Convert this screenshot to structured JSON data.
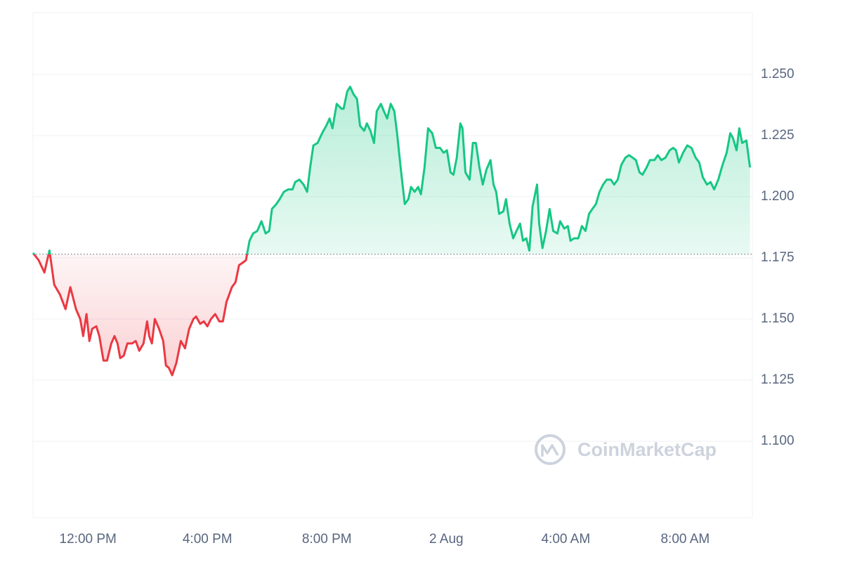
{
  "chart_data": {
    "type": "line",
    "watermark": "CoinMarketCap",
    "x": [
      10.16,
      10.35,
      10.54,
      10.71,
      10.87,
      11.06,
      11.25,
      11.41,
      11.6,
      11.74,
      11.84,
      11.95,
      12.05,
      12.14,
      12.28,
      12.38,
      12.52,
      12.64,
      12.78,
      12.89,
      12.99,
      13.08,
      13.2,
      13.32,
      13.48,
      13.6,
      13.72,
      13.86,
      13.98,
      14.05,
      14.14,
      14.24,
      14.38,
      14.52,
      14.61,
      14.71,
      14.82,
      14.96,
      15.11,
      15.25,
      15.39,
      15.53,
      15.62,
      15.76,
      15.88,
      16.0,
      16.12,
      16.26,
      16.4,
      16.52,
      16.64,
      16.73,
      16.82,
      16.94,
      17.06,
      17.18,
      17.29,
      17.41,
      17.53,
      17.67,
      17.81,
      17.95,
      18.07,
      18.16,
      18.31,
      18.42,
      18.56,
      18.71,
      18.85,
      18.94,
      19.08,
      19.22,
      19.34,
      19.44,
      19.55,
      19.69,
      19.84,
      19.98,
      20.09,
      20.19,
      20.33,
      20.49,
      20.56,
      20.68,
      20.78,
      20.89,
      21.01,
      21.11,
      21.25,
      21.34,
      21.46,
      21.58,
      21.67,
      21.81,
      21.91,
      22.02,
      22.14,
      22.26,
      22.35,
      22.47,
      22.61,
      22.73,
      22.82,
      22.94,
      23.06,
      23.15,
      23.27,
      23.39,
      23.53,
      23.65,
      23.79,
      23.91,
      24.02,
      24.14,
      24.24,
      24.35,
      24.47,
      24.54,
      24.64,
      24.78,
      24.89,
      24.99,
      25.11,
      25.22,
      25.34,
      25.48,
      25.58,
      25.67,
      25.77,
      25.91,
      26.0,
      26.12,
      26.24,
      26.35,
      26.47,
      26.57,
      26.68,
      26.78,
      26.89,
      27.04,
      27.11,
      27.22,
      27.34,
      27.46,
      27.58,
      27.72,
      27.81,
      27.95,
      28.07,
      28.16,
      28.28,
      28.42,
      28.54,
      28.66,
      28.78,
      28.89,
      29.01,
      29.13,
      29.25,
      29.37,
      29.51,
      29.62,
      29.74,
      29.86,
      30.0,
      30.12,
      30.24,
      30.35,
      30.47,
      30.57,
      30.71,
      30.82,
      30.97,
      31.08,
      31.2,
      31.34,
      31.48,
      31.6,
      31.69,
      31.79,
      31.93,
      32.07,
      32.21,
      32.35,
      32.47,
      32.59,
      32.73,
      32.85,
      32.97,
      33.11,
      33.25,
      33.39,
      33.51,
      33.6,
      33.72,
      33.81,
      33.91,
      34.05,
      34.17
    ],
    "values": [
      1.177,
      1.174,
      1.169,
      1.178,
      1.164,
      1.16,
      1.154,
      1.163,
      1.154,
      1.15,
      1.143,
      1.152,
      1.141,
      1.146,
      1.147,
      1.143,
      1.133,
      1.133,
      1.14,
      1.143,
      1.14,
      1.134,
      1.135,
      1.14,
      1.14,
      1.141,
      1.137,
      1.14,
      1.149,
      1.143,
      1.14,
      1.15,
      1.146,
      1.141,
      1.131,
      1.13,
      1.127,
      1.132,
      1.141,
      1.138,
      1.146,
      1.15,
      1.151,
      1.148,
      1.149,
      1.147,
      1.15,
      1.152,
      1.149,
      1.149,
      1.157,
      1.16,
      1.163,
      1.165,
      1.172,
      1.173,
      1.174,
      1.182,
      1.185,
      1.186,
      1.19,
      1.185,
      1.186,
      1.195,
      1.197,
      1.199,
      1.202,
      1.203,
      1.203,
      1.206,
      1.207,
      1.205,
      1.202,
      1.212,
      1.221,
      1.222,
      1.226,
      1.229,
      1.232,
      1.228,
      1.238,
      1.236,
      1.236,
      1.243,
      1.245,
      1.242,
      1.24,
      1.229,
      1.227,
      1.23,
      1.227,
      1.222,
      1.235,
      1.238,
      1.235,
      1.232,
      1.238,
      1.235,
      1.226,
      1.212,
      1.197,
      1.199,
      1.204,
      1.202,
      1.204,
      1.201,
      1.212,
      1.228,
      1.226,
      1.22,
      1.22,
      1.218,
      1.219,
      1.21,
      1.209,
      1.216,
      1.23,
      1.228,
      1.21,
      1.207,
      1.222,
      1.222,
      1.212,
      1.205,
      1.211,
      1.215,
      1.205,
      1.202,
      1.193,
      1.194,
      1.199,
      1.189,
      1.183,
      1.186,
      1.189,
      1.182,
      1.183,
      1.178,
      1.196,
      1.205,
      1.189,
      1.179,
      1.186,
      1.195,
      1.186,
      1.185,
      1.19,
      1.187,
      1.188,
      1.182,
      1.183,
      1.183,
      1.188,
      1.186,
      1.193,
      1.195,
      1.197,
      1.202,
      1.205,
      1.207,
      1.207,
      1.205,
      1.207,
      1.213,
      1.216,
      1.217,
      1.216,
      1.215,
      1.21,
      1.209,
      1.212,
      1.215,
      1.215,
      1.217,
      1.215,
      1.216,
      1.219,
      1.22,
      1.219,
      1.214,
      1.218,
      1.221,
      1.22,
      1.216,
      1.214,
      1.208,
      1.205,
      1.206,
      1.203,
      1.207,
      1.213,
      1.218,
      1.226,
      1.224,
      1.219,
      1.228,
      1.222,
      1.223,
      1.212
    ],
    "baseline": 1.1765,
    "up_color": "#16c784",
    "down_color": "#ea3943",
    "xlim": [
      10.16,
      34.25
    ],
    "xticks": [
      {
        "value": 12,
        "label": "12:00 PM"
      },
      {
        "value": 16,
        "label": "4:00 PM"
      },
      {
        "value": 20,
        "label": "8:00 PM"
      },
      {
        "value": 24,
        "label": "2 Aug"
      },
      {
        "value": 28,
        "label": "4:00 AM"
      },
      {
        "value": 32,
        "label": "8:00 AM"
      }
    ],
    "ylim": [
      1.0687,
      1.2753
    ],
    "yticks": [
      {
        "value": 1.1,
        "label": "1.100"
      },
      {
        "value": 1.125,
        "label": "1.125"
      },
      {
        "value": 1.15,
        "label": "1.150"
      },
      {
        "value": 1.175,
        "label": "1.175"
      },
      {
        "value": 1.2,
        "label": "1.200"
      },
      {
        "value": 1.225,
        "label": "1.225"
      },
      {
        "value": 1.25,
        "label": "1.250"
      }
    ],
    "grid": true
  }
}
